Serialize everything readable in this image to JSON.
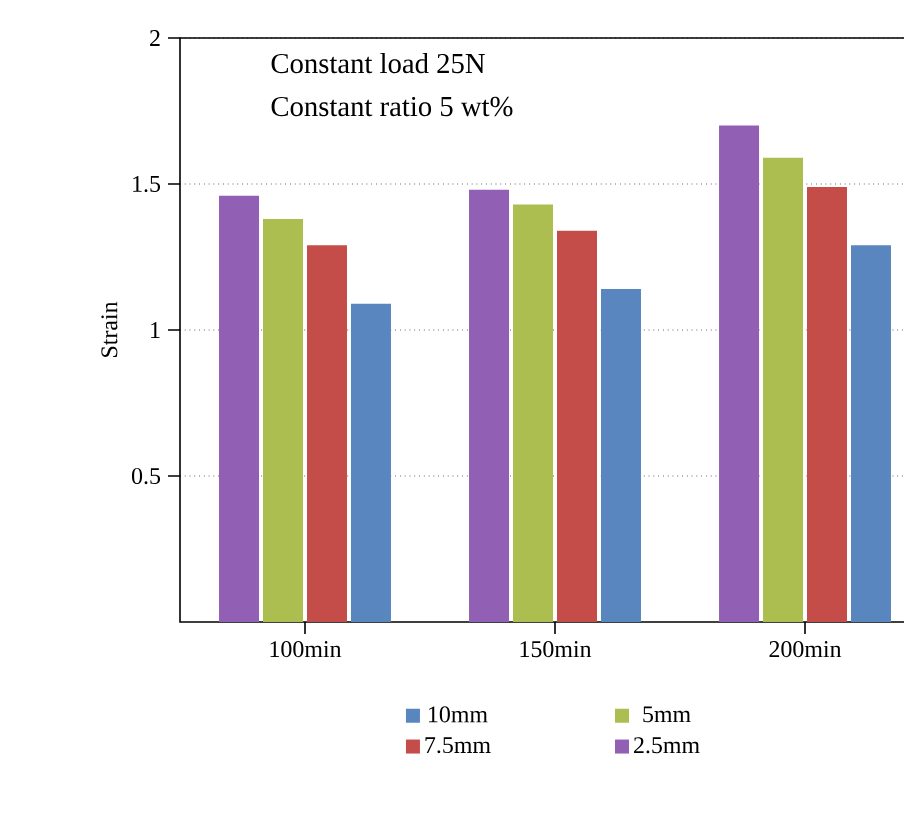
{
  "chart_data": {
    "type": "bar",
    "ylabel": "Strain",
    "annotations": [
      "Constant load 25N",
      "Constant ratio 5 wt%"
    ],
    "categories": [
      "100min",
      "150min",
      "200min"
    ],
    "series": [
      {
        "name": "2.5mm",
        "color": "#9160b4",
        "values": [
          1.46,
          1.48,
          1.7
        ]
      },
      {
        "name": "5mm",
        "color": "#abbe4f",
        "values": [
          1.38,
          1.43,
          1.59
        ]
      },
      {
        "name": "7.5mm",
        "color": "#c44d49",
        "values": [
          1.29,
          1.34,
          1.49
        ]
      },
      {
        "name": "10mm",
        "color": "#5a86c0",
        "values": [
          1.09,
          1.14,
          1.29
        ]
      }
    ],
    "ylim": [
      0,
      2
    ],
    "yticks": [
      0.5,
      1,
      1.5,
      2
    ],
    "grid": "y",
    "legend": "bottom"
  }
}
